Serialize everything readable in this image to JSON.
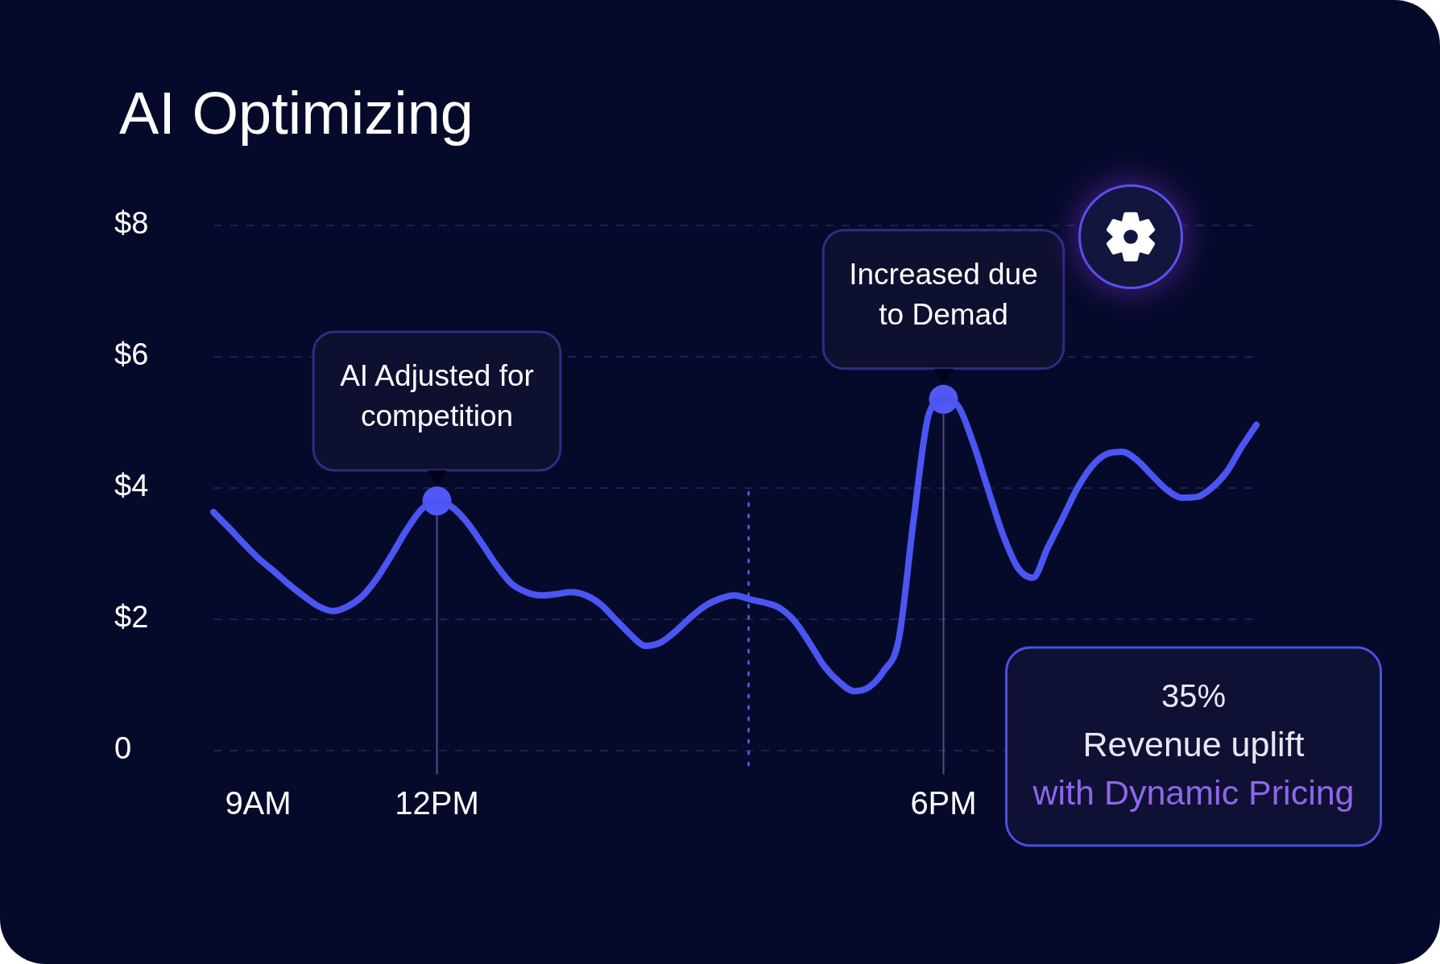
{
  "chart_data": {
    "type": "line",
    "title": "AI Optimizing",
    "categories": [
      null,
      null,
      null,
      "9AM",
      null,
      null,
      null,
      null,
      null,
      null,
      null,
      null,
      null,
      null,
      null,
      "12PM",
      null,
      null,
      null,
      null,
      null,
      null,
      null,
      null,
      null,
      null,
      null,
      null,
      null,
      null,
      null,
      null,
      null,
      null,
      null,
      null,
      null,
      null,
      null,
      null,
      null,
      null,
      null,
      null,
      null,
      null,
      null,
      null,
      null,
      "6PM",
      null,
      null,
      null,
      null,
      null,
      null,
      null,
      null,
      null,
      null,
      null,
      null,
      null,
      null,
      null,
      null,
      null,
      null,
      null,
      null,
      null
    ],
    "series": [
      {
        "color": "#4b55f2",
        "values": [
          3.63,
          3.4,
          3.16,
          2.93,
          2.74,
          2.54,
          2.36,
          2.2,
          2.12,
          2.19,
          2.35,
          2.63,
          2.99,
          3.37,
          3.68,
          3.8,
          3.71,
          3.48,
          3.16,
          2.82,
          2.54,
          2.41,
          2.36,
          2.38,
          2.41,
          2.36,
          2.22,
          1.99,
          1.76,
          1.59,
          1.64,
          1.81,
          2.02,
          2.2,
          2.31,
          2.36,
          2.3,
          2.25,
          2.17,
          1.97,
          1.64,
          1.28,
          1.04,
          0.9,
          0.96,
          1.21,
          1.69,
          3.52,
          5.11,
          5.35,
          5.24,
          4.68,
          3.97,
          3.28,
          2.78,
          2.63,
          3.09,
          3.54,
          4.0,
          4.34,
          4.52,
          4.55,
          4.42,
          4.19,
          3.97,
          3.85,
          3.86,
          4.0,
          4.24,
          4.62,
          4.96
        ]
      },
      {
        "type": "scatter",
        "color": "#5058f5",
        "marker": "circle",
        "x": [
          "12PM",
          "6PM"
        ],
        "values": [
          3.8,
          5.35
        ]
      }
    ],
    "ylim": [
      0,
      8
    ],
    "yticks": [
      0,
      {
        "value": 2,
        "label": "$2"
      },
      {
        "value": 4,
        "label": "$4"
      },
      {
        "value": 6,
        "label": "$6"
      },
      {
        "value": 8,
        "label": "$8"
      }
    ],
    "grid": "y",
    "annotations": [
      {
        "text": "AI Adjusted for competition",
        "x": "12PM",
        "y": 3.8
      },
      {
        "text": "Increased due to Demad",
        "x": "6PM",
        "y": 5.35
      },
      "35%",
      "Revenue uplift",
      "with Dynamic Pricing"
    ]
  }
}
